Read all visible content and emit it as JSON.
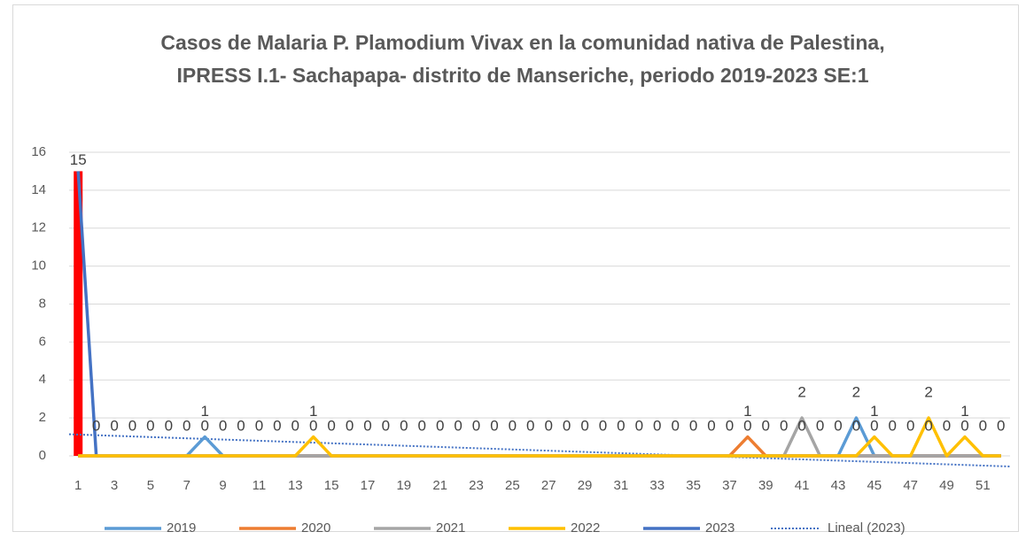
{
  "chart_data": {
    "type": "line",
    "title": "Casos de Malaria P. Plamodium Vivax en la comunidad nativa de Palestina, IPRESS I.1- Sachapapa- distrito de Manseriche, periodo 2019-2023 SE:1",
    "categories": [
      1,
      null,
      3,
      null,
      5,
      null,
      7,
      null,
      9,
      null,
      11,
      null,
      13,
      null,
      15,
      null,
      17,
      null,
      19,
      null,
      21,
      null,
      23,
      null,
      25,
      null,
      27,
      null,
      29,
      null,
      31,
      null,
      33,
      null,
      35,
      null,
      37,
      null,
      39,
      null,
      41,
      null,
      43,
      null,
      45,
      null,
      47,
      null,
      49,
      null,
      51,
      null
    ],
    "series": [
      {
        "name": "2019",
        "color": "#5b9bd5",
        "values": [
          0,
          0,
          0,
          0,
          0,
          0,
          0,
          1,
          0,
          0,
          0,
          0,
          0,
          0,
          0,
          0,
          0,
          0,
          0,
          0,
          0,
          0,
          0,
          0,
          0,
          0,
          0,
          0,
          0,
          0,
          0,
          0,
          0,
          0,
          0,
          0,
          0,
          0,
          0,
          0,
          0,
          0,
          0,
          2,
          0,
          0,
          0,
          0,
          0,
          0,
          0,
          0
        ]
      },
      {
        "name": "2020",
        "color": "#ed7d31",
        "values": [
          0,
          0,
          0,
          0,
          0,
          0,
          0,
          0,
          0,
          0,
          0,
          0,
          0,
          0,
          0,
          0,
          0,
          0,
          0,
          0,
          0,
          0,
          0,
          0,
          0,
          0,
          0,
          0,
          0,
          0,
          0,
          0,
          0,
          0,
          0,
          0,
          0,
          1,
          0,
          0,
          0,
          0,
          0,
          0,
          0,
          0,
          0,
          0,
          0,
          0,
          0,
          0
        ]
      },
      {
        "name": "2021",
        "color": "#a5a5a5",
        "values": [
          0,
          0,
          0,
          0,
          0,
          0,
          0,
          0,
          0,
          0,
          0,
          0,
          0,
          0,
          0,
          0,
          0,
          0,
          0,
          0,
          0,
          0,
          0,
          0,
          0,
          0,
          0,
          0,
          0,
          0,
          0,
          0,
          0,
          0,
          0,
          0,
          0,
          0,
          0,
          0,
          2,
          0,
          0,
          0,
          0,
          0,
          0,
          0,
          0,
          0,
          0,
          0
        ]
      },
      {
        "name": "2022",
        "color": "#ffc000",
        "values": [
          0,
          0,
          0,
          0,
          0,
          0,
          0,
          0,
          0,
          0,
          0,
          0,
          0,
          1,
          0,
          0,
          0,
          0,
          0,
          0,
          0,
          0,
          0,
          0,
          0,
          0,
          0,
          0,
          0,
          0,
          0,
          0,
          0,
          0,
          0,
          0,
          0,
          0,
          0,
          0,
          0,
          0,
          0,
          0,
          1,
          0,
          0,
          2,
          0,
          1,
          0,
          0
        ]
      },
      {
        "name": "2023",
        "color": "#4472c4",
        "bar_color": "#ff0000",
        "values": [
          15,
          0,
          0,
          0,
          0,
          0,
          0,
          0,
          0,
          0,
          0,
          0,
          0,
          0,
          0,
          0,
          0,
          0,
          0,
          0,
          0,
          0,
          0,
          0,
          0,
          0,
          0,
          0,
          0,
          0,
          0,
          0,
          0,
          0,
          0,
          0,
          0,
          0,
          0,
          0,
          0,
          0,
          0,
          0,
          0,
          0,
          0,
          0,
          0,
          0,
          0,
          0
        ]
      }
    ],
    "trendline": {
      "name": "Lineal (2023)",
      "color": "#4472c4"
    },
    "ylim": [
      0,
      16
    ],
    "yticks": [
      0,
      2,
      4,
      6,
      8,
      10,
      12,
      14,
      16
    ],
    "grid": true,
    "legend": "bottom"
  }
}
